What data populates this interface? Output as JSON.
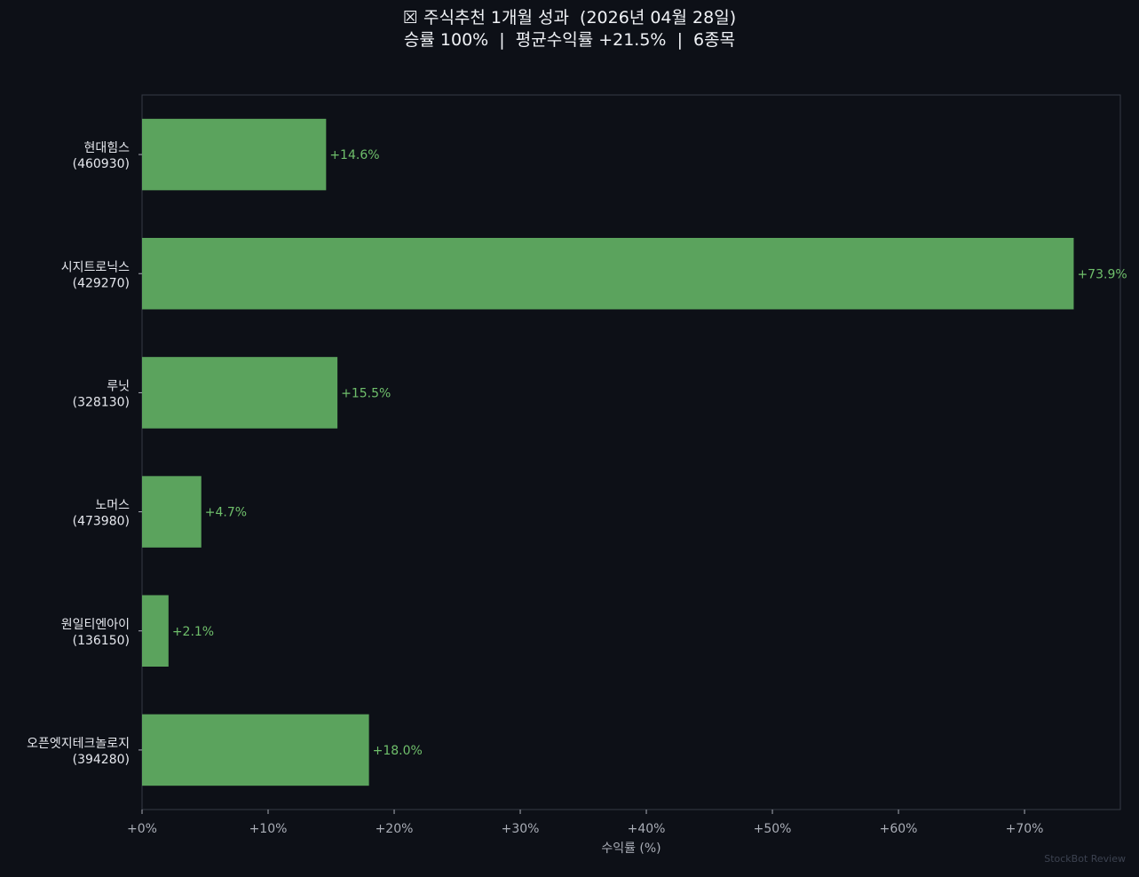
{
  "title": "☒ 주식추천 1개월 성과  (2026년 04월 28일)",
  "subtitle": "승률 100%  |  평균수익률 +21.5%  |  6종목",
  "watermark": "StockBot Review",
  "colors": {
    "background": "#0d1017",
    "bar": "#5ba35d",
    "value_label": "#6fbf6b",
    "text": "#e6e8ee",
    "tick_text": "#a9adb6",
    "axes": "#353a44"
  },
  "chart_data": {
    "type": "bar",
    "orientation": "horizontal",
    "categories": [
      {
        "name": "현대힘스",
        "code": "(460930)"
      },
      {
        "name": "시지트로닉스",
        "code": "(429270)"
      },
      {
        "name": "루닛",
        "code": "(328130)"
      },
      {
        "name": "노머스",
        "code": "(473980)"
      },
      {
        "name": "원일티엔아이",
        "code": "(136150)"
      },
      {
        "name": "오픈엣지테크놀로지",
        "code": "(394280)"
      }
    ],
    "values": [
      14.6,
      73.9,
      15.5,
      4.7,
      2.1,
      18.0
    ],
    "value_labels": [
      "+14.6%",
      "+73.9%",
      "+15.5%",
      "+4.7%",
      "+2.1%",
      "+18.0%"
    ],
    "xlabel": "수익률 (%)",
    "xlim": [
      0,
      77.6
    ],
    "x_ticks": [
      0,
      10,
      20,
      30,
      40,
      50,
      60,
      70
    ],
    "x_tick_labels": [
      "+0%",
      "+10%",
      "+20%",
      "+30%",
      "+40%",
      "+50%",
      "+60%",
      "+70%"
    ],
    "grid": false
  }
}
